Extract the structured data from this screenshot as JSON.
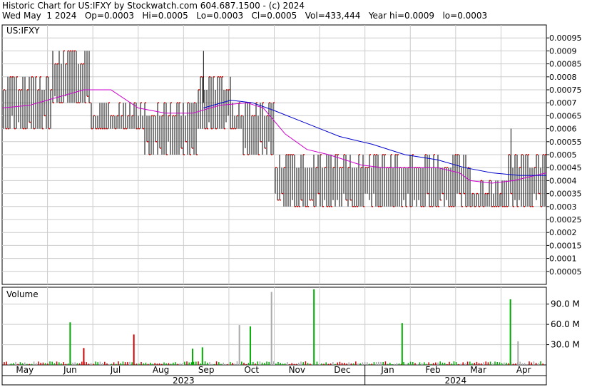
{
  "header": {
    "line1": "Historic Chart for US:IFXY by Stockwatch.com 604.687.1500 - (c) 2024",
    "line2": "Wed May  1 2024   Op=0.0003   Hi=0.0005   Lo=0.0003   Cl=0.0005   Vol=433,444   Year hi=0.0009   lo=0.0003"
  },
  "colors": {
    "price_bar": "#000000",
    "close_tick": "#cc0000",
    "ma_short": "#cc00cc",
    "ma_long": "#0000cc",
    "vol_up": "#00aa00",
    "vol_down": "#cc0000",
    "vol_flat": "#aaaaaa",
    "grid": "#cccccc"
  },
  "chart_data": [
    {
      "type": "line",
      "name": "price-panel",
      "label": "US:IFXY",
      "y_ticks": [
        "0.00095",
        "0.0009",
        "0.00085",
        "0.0008",
        "0.00075",
        "0.0007",
        "0.00065",
        "0.0006",
        "0.00055",
        "0.0005",
        "0.00045",
        "0.0004",
        "0.00035",
        "0.0003",
        "0.00025",
        "0.0002",
        "0.00015",
        "0.0001",
        "0.00005"
      ],
      "y_range": [
        0,
        0.001
      ],
      "price_bands": [
        {
          "from": 0,
          "to": 0.03,
          "lo": 0.0006,
          "hi": 0.0008
        },
        {
          "from": 0.03,
          "to": 0.09,
          "lo": 0.0006,
          "hi": 0.0008
        },
        {
          "from": 0.09,
          "to": 0.16,
          "lo": 0.0007,
          "hi": 0.0009
        },
        {
          "from": 0.16,
          "to": 0.26,
          "lo": 0.0006,
          "hi": 0.0007
        },
        {
          "from": 0.26,
          "to": 0.36,
          "lo": 0.0005,
          "hi": 0.0007
        },
        {
          "from": 0.36,
          "to": 0.42,
          "lo": 0.0006,
          "hi": 0.0008
        },
        {
          "from": 0.42,
          "to": 0.44,
          "lo": 0.0006,
          "hi": 0.0007
        },
        {
          "from": 0.44,
          "to": 0.5,
          "lo": 0.0005,
          "hi": 0.0007
        },
        {
          "from": 0.5,
          "to": 0.6,
          "lo": 0.0003,
          "hi": 0.0005
        },
        {
          "from": 0.6,
          "to": 0.7,
          "lo": 0.0003,
          "hi": 0.0005
        },
        {
          "from": 0.7,
          "to": 0.86,
          "lo": 0.0003,
          "hi": 0.0005
        },
        {
          "from": 0.86,
          "to": 0.93,
          "lo": 0.0003,
          "hi": 0.0004
        },
        {
          "from": 0.93,
          "to": 1.0,
          "lo": 0.0003,
          "hi": 0.0005
        }
      ],
      "price_spikes": [
        {
          "at": 0.37,
          "value": 0.0009
        },
        {
          "at": 0.935,
          "value": 0.0006
        }
      ],
      "ma_short": [
        [
          0.0,
          0.00068
        ],
        [
          0.05,
          0.00069
        ],
        [
          0.1,
          0.00072
        ],
        [
          0.15,
          0.00075
        ],
        [
          0.2,
          0.00075
        ],
        [
          0.25,
          0.00068
        ],
        [
          0.3,
          0.00066
        ],
        [
          0.35,
          0.00066
        ],
        [
          0.4,
          0.00069
        ],
        [
          0.45,
          0.0007
        ],
        [
          0.48,
          0.00068
        ],
        [
          0.52,
          0.00058
        ],
        [
          0.56,
          0.00052
        ],
        [
          0.6,
          0.0005
        ],
        [
          0.66,
          0.00046
        ],
        [
          0.7,
          0.00045
        ],
        [
          0.75,
          0.00045
        ],
        [
          0.8,
          0.00045
        ],
        [
          0.84,
          0.00043
        ],
        [
          0.86,
          0.0004
        ],
        [
          0.9,
          0.00039
        ],
        [
          0.94,
          0.0004
        ],
        [
          1.0,
          0.00043
        ]
      ],
      "ma_long": [
        [
          0.37,
          0.00068
        ],
        [
          0.42,
          0.00071
        ],
        [
          0.46,
          0.0007
        ],
        [
          0.5,
          0.00067
        ],
        [
          0.56,
          0.00062
        ],
        [
          0.62,
          0.00057
        ],
        [
          0.68,
          0.00054
        ],
        [
          0.74,
          0.0005
        ],
        [
          0.8,
          0.00048
        ],
        [
          0.85,
          0.00045
        ],
        [
          0.9,
          0.00043
        ],
        [
          0.95,
          0.00042
        ],
        [
          1.0,
          0.00042
        ]
      ]
    },
    {
      "type": "bar",
      "name": "volume-panel",
      "label": "Volume",
      "y_ticks": [
        "90.0 M",
        "60.0 M",
        "30.0 M"
      ],
      "y_range": [
        0,
        115
      ],
      "spikes": [
        {
          "at": 0.125,
          "value": 63,
          "dir": "up"
        },
        {
          "at": 0.15,
          "value": 25,
          "dir": "down"
        },
        {
          "at": 0.242,
          "value": 45,
          "dir": "down"
        },
        {
          "at": 0.35,
          "value": 24,
          "dir": "up"
        },
        {
          "at": 0.368,
          "value": 26,
          "dir": "up"
        },
        {
          "at": 0.436,
          "value": 59,
          "dir": "flat"
        },
        {
          "at": 0.456,
          "value": 57,
          "dir": "up"
        },
        {
          "at": 0.495,
          "value": 108,
          "dir": "flat"
        },
        {
          "at": 0.573,
          "value": 112,
          "dir": "up"
        },
        {
          "at": 0.735,
          "value": 62,
          "dir": "up"
        },
        {
          "at": 0.934,
          "value": 97,
          "dir": "up"
        },
        {
          "at": 0.948,
          "value": 35,
          "dir": "flat"
        }
      ],
      "x_ticks": [
        "May",
        "Jun",
        "Jul",
        "Aug",
        "Sep",
        "Oct",
        "Nov",
        "Dec",
        "Jan",
        "Feb",
        "Mar",
        "Apr"
      ],
      "years": [
        "2023",
        "2024"
      ]
    }
  ]
}
